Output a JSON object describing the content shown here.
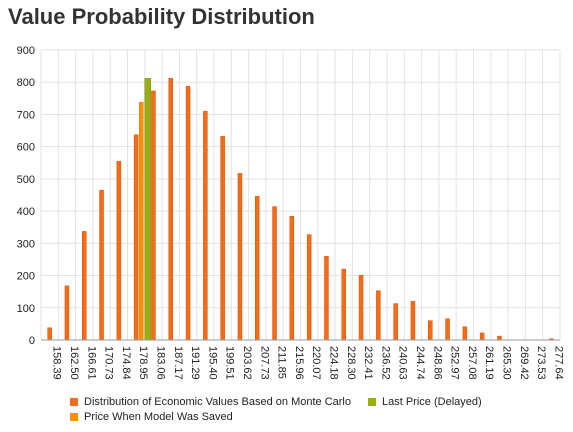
{
  "title": "Value Probability Distribution",
  "colors": {
    "distribution": "#f26c1a",
    "distribution_stroke": "#d9550a",
    "last_price": "#9aae14",
    "model_price": "#ff9100",
    "grid": "#e3e3e3",
    "axis_text": "#222222"
  },
  "chart_data": {
    "type": "bar",
    "title": "Value Probability Distribution",
    "ylim": [
      0,
      900
    ],
    "yticks": [
      0,
      100,
      200,
      300,
      400,
      500,
      600,
      700,
      800,
      900
    ],
    "grid": true,
    "legend_position": "bottom",
    "categories": [
      "158.39",
      "162.50",
      "166.61",
      "170.73",
      "174.84",
      "178.95",
      "183.06",
      "187.17",
      "191.29",
      "195.40",
      "199.51",
      "203.62",
      "207.73",
      "211.85",
      "215.96",
      "220.07",
      "224.18",
      "228.30",
      "232.41",
      "236.52",
      "240.63",
      "244.74",
      "248.86",
      "252.97",
      "257.08",
      "261.19",
      "265.30",
      "269.42",
      "273.53",
      "277.64"
    ],
    "series": [
      {
        "name": "Distribution of Economic Values Based on Monte Carlo",
        "values": [
          38,
          168,
          337,
          465,
          555,
          637,
          773,
          812,
          787,
          710,
          632,
          517,
          446,
          414,
          384,
          327,
          260,
          220,
          201,
          153,
          113,
          120,
          60,
          66,
          41,
          22,
          12,
          0,
          0,
          4
        ]
      },
      {
        "name": "Last Price (Delayed)",
        "category_index": 6,
        "value": 812
      },
      {
        "name": "Price When Model Was Saved",
        "category_index": 5,
        "value": 738
      }
    ]
  },
  "legend": {
    "items": [
      "Distribution of Economic Values Based on Monte Carlo",
      "Last Price (Delayed)",
      "Price When Model Was Saved"
    ]
  }
}
